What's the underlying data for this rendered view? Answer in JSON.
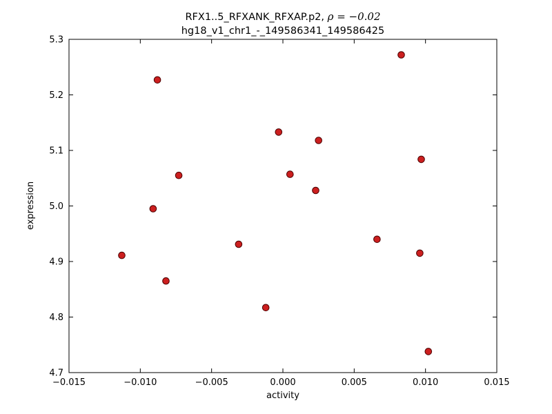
{
  "chart_data": {
    "type": "scatter",
    "title_line1_prefix": "RFX1..5_RFXANK_RFXAP.p2, ",
    "title_math": "ρ = −0.02",
    "title_line2": "hg18_v1_chr1_-_149586341_149586425",
    "xlabel": "activity",
    "ylabel": "expression",
    "xlim": [
      -0.015,
      0.015
    ],
    "ylim": [
      4.7,
      5.3
    ],
    "xticks": [
      -0.015,
      -0.01,
      -0.005,
      0,
      0.005,
      0.01,
      0.015
    ],
    "xtick_labels": [
      "−0.015",
      "−0.010",
      "−0.005",
      "0.000",
      "0.005",
      "0.010",
      "0.015"
    ],
    "yticks": [
      4.7,
      4.8,
      4.9,
      5.0,
      5.1,
      5.2,
      5.3
    ],
    "ytick_labels": [
      "4.7",
      "4.8",
      "4.9",
      "5.0",
      "5.1",
      "5.2",
      "5.3"
    ],
    "grid": false,
    "marker": "circle",
    "marker_color": "#cc1f1f",
    "marker_edge_color": "#4a0000",
    "marker_radius": 4.8,
    "points": [
      [
        -0.0113,
        4.911
      ],
      [
        -0.0091,
        4.995
      ],
      [
        -0.0088,
        5.227
      ],
      [
        -0.0082,
        4.865
      ],
      [
        -0.0073,
        5.055
      ],
      [
        -0.0031,
        4.931
      ],
      [
        -0.0012,
        4.817
      ],
      [
        -0.0003,
        5.133
      ],
      [
        0.0005,
        5.057
      ],
      [
        0.0023,
        5.028
      ],
      [
        0.0025,
        5.118
      ],
      [
        0.0066,
        4.94
      ],
      [
        0.0083,
        5.272
      ],
      [
        0.0096,
        4.915
      ],
      [
        0.0097,
        5.084
      ],
      [
        0.0102,
        4.738
      ]
    ]
  }
}
